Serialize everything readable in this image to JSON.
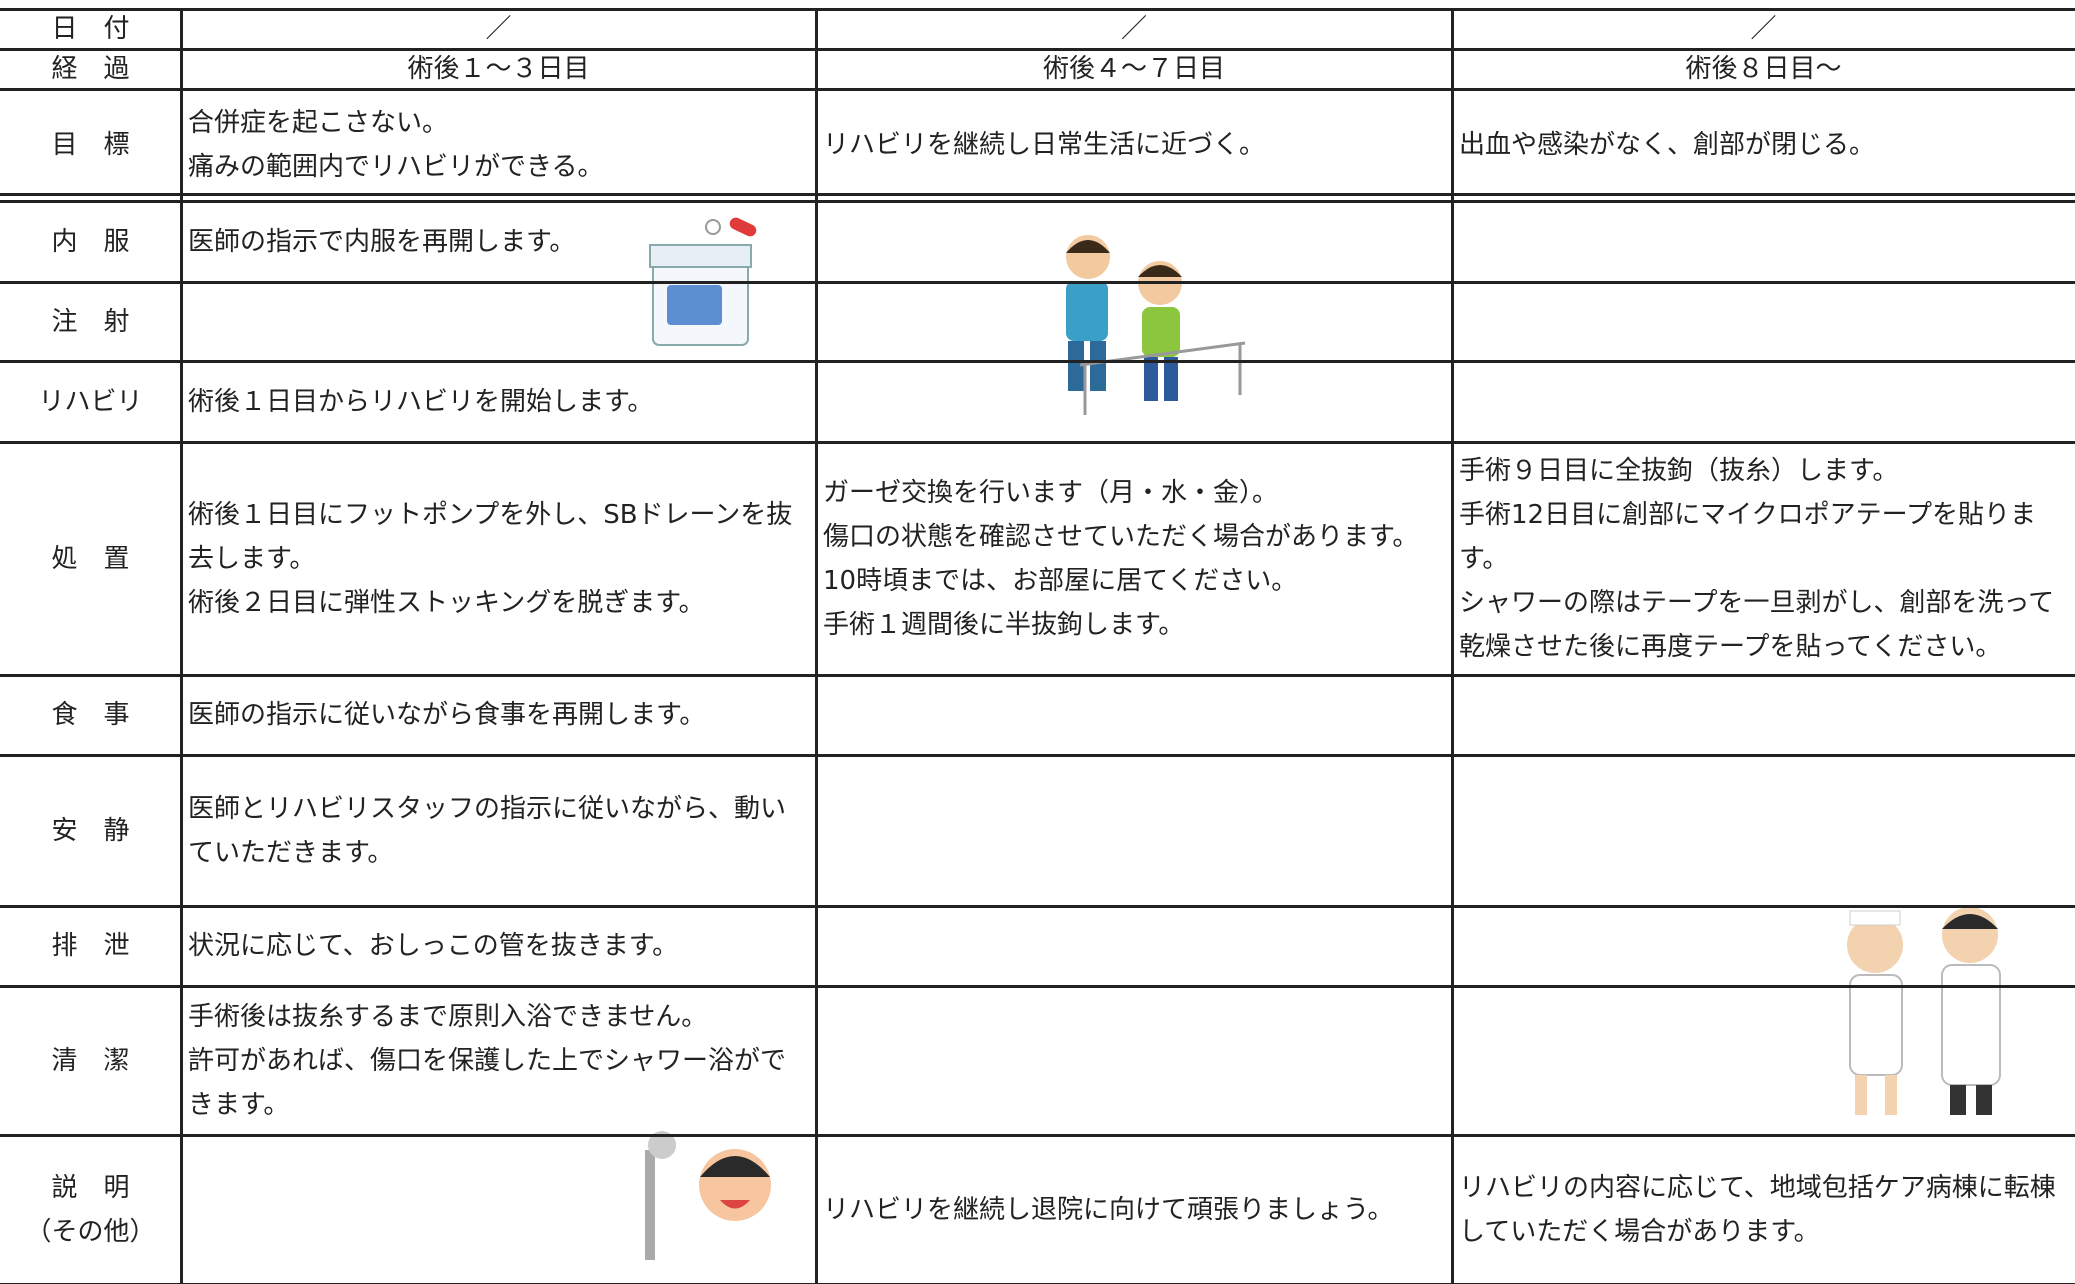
{
  "table": {
    "rows": [
      {
        "label": [
          "日　付"
        ],
        "cells": [
          [
            "／"
          ],
          [
            "／"
          ],
          [
            "／"
          ]
        ]
      },
      {
        "label": [
          "経　過"
        ],
        "cells": [
          [
            "術後１～３日目"
          ],
          [
            "術後４～７日目"
          ],
          [
            "術後８日目～"
          ]
        ]
      },
      {
        "label": [
          "目　標"
        ],
        "cells": [
          [
            "合併症を起こさない。",
            "痛みの範囲内でリハビリができる。"
          ],
          [
            "リハビリを継続し日常生活に近づく。"
          ],
          [
            "出血や感染がなく、創部が閉じる。"
          ]
        ]
      },
      {
        "label": [
          "内　服"
        ],
        "cells": [
          [
            "医師の指示で内服を再開します。"
          ],
          [],
          []
        ]
      },
      {
        "label": [
          "注　射"
        ],
        "cells": [
          [],
          [],
          []
        ]
      },
      {
        "label": [
          "リハビリ"
        ],
        "cells": [
          [
            "術後１日目からリハビリを開始します。"
          ],
          [],
          []
        ]
      },
      {
        "label": [
          "処　置"
        ],
        "cells": [
          [
            "術後１日目にフットポンプを外し、SBドレーンを抜",
            "去します。",
            "術後２日目に弾性ストッキングを脱ぎます。"
          ],
          [
            "ガーゼ交換を行います（月・水・金）。",
            "傷口の状態を確認させていただく場合があります。",
            "10時頃までは、お部屋に居てください。",
            "手術１週間後に半抜鉤します。"
          ],
          [
            "手術９日目に全抜鉤（抜糸）します。",
            "手術12日目に創部にマイクロポアテープを貼りま",
            "す。",
            "シャワーの際はテープを一旦剥がし、創部を洗って",
            "乾燥させた後に再度テープを貼ってください。"
          ]
        ]
      },
      {
        "label": [
          "食　事"
        ],
        "cells": [
          [
            "医師の指示に従いながら食事を再開します。"
          ],
          [],
          []
        ]
      },
      {
        "label": [
          "安　静"
        ],
        "cells": [
          [
            "医師とリハビリスタッフの指示に従いながら、動い",
            "ていただきます。"
          ],
          [],
          []
        ]
      },
      {
        "label": [
          "排　泄"
        ],
        "cells": [
          [
            "状況に応じて、おしっこの管を抜きます。"
          ],
          [],
          []
        ]
      },
      {
        "label": [
          "清　潔"
        ],
        "cells": [
          [
            "手術後は抜糸するまで原則入浴できません。",
            "許可があれば、傷口を保護した上でシャワー浴がで",
            "きます。"
          ],
          [],
          []
        ]
      },
      {
        "label": [
          "説　明",
          "（その他）"
        ],
        "cells": [
          [],
          [
            "リハビリを継続し退院に向けて頑張りましょう。"
          ],
          [
            "リハビリの内容に応じて、地域包括ケア病棟に転棟",
            "していただく場合があります。"
          ]
        ]
      }
    ]
  }
}
